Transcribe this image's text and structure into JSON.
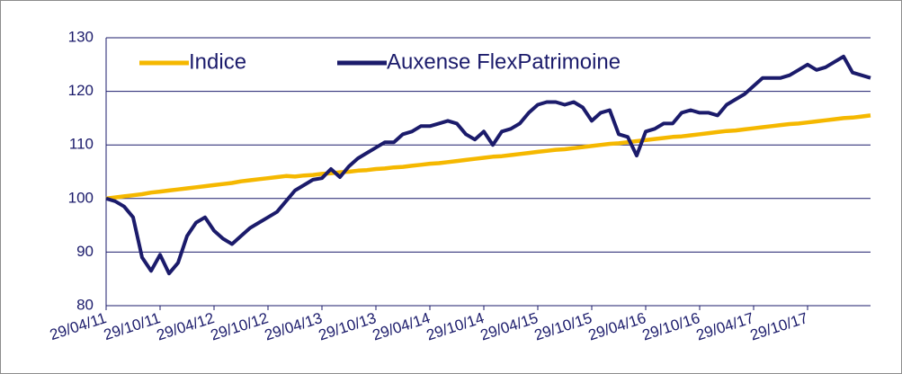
{
  "chart_data": {
    "type": "line",
    "x": [
      "29/04/11",
      "29/05/11",
      "29/06/11",
      "29/07/11",
      "29/08/11",
      "29/09/11",
      "29/10/11",
      "29/11/11",
      "29/12/11",
      "29/01/12",
      "29/02/12",
      "29/03/12",
      "29/04/12",
      "29/05/12",
      "29/06/12",
      "29/07/12",
      "29/08/12",
      "29/09/12",
      "29/10/12",
      "29/11/12",
      "29/12/12",
      "29/01/13",
      "29/02/13",
      "29/03/13",
      "29/04/13",
      "29/05/13",
      "29/06/13",
      "29/07/13",
      "29/08/13",
      "29/09/13",
      "29/10/13",
      "29/11/13",
      "29/12/13",
      "29/01/14",
      "29/02/14",
      "29/03/14",
      "29/04/14",
      "29/05/14",
      "29/06/14",
      "29/07/14",
      "29/08/14",
      "29/09/14",
      "29/10/14",
      "29/11/14",
      "29/12/14",
      "29/01/15",
      "29/02/15",
      "29/03/15",
      "29/04/15",
      "29/05/15",
      "29/06/15",
      "29/07/15",
      "29/08/15",
      "29/09/15",
      "29/10/15",
      "29/11/15",
      "29/12/15",
      "29/01/16",
      "29/02/16",
      "29/03/16",
      "29/04/16",
      "29/05/16",
      "29/06/16",
      "29/07/16",
      "29/08/16",
      "29/09/16",
      "29/10/16",
      "29/11/16",
      "29/12/16",
      "29/01/17",
      "29/02/17",
      "29/03/17",
      "29/04/17",
      "29/05/17",
      "29/06/17",
      "29/07/17",
      "29/08/17",
      "29/09/17",
      "29/10/17",
      "29/11/17",
      "29/12/17",
      "29/01/18",
      "29/02/18",
      "29/03/18",
      "29/04/18",
      "29/05/18"
    ],
    "series": [
      {
        "name": "Indice",
        "color": "#f5b800",
        "values": [
          100.0,
          100.2,
          100.4,
          100.6,
          100.8,
          101.1,
          101.3,
          101.5,
          101.7,
          101.9,
          102.1,
          102.3,
          102.5,
          102.7,
          102.9,
          103.2,
          103.4,
          103.6,
          103.8,
          104.0,
          104.2,
          104.1,
          104.3,
          104.4,
          104.6,
          104.7,
          104.9,
          105.0,
          105.2,
          105.3,
          105.5,
          105.6,
          105.8,
          105.9,
          106.1,
          106.3,
          106.5,
          106.6,
          106.8,
          107.0,
          107.2,
          107.4,
          107.6,
          107.8,
          107.9,
          108.1,
          108.3,
          108.5,
          108.7,
          108.9,
          109.1,
          109.2,
          109.4,
          109.6,
          109.8,
          110.0,
          110.2,
          110.3,
          110.5,
          110.7,
          110.9,
          111.1,
          111.3,
          111.5,
          111.6,
          111.8,
          112.0,
          112.2,
          112.4,
          112.6,
          112.7,
          112.9,
          113.1,
          113.3,
          113.5,
          113.7,
          113.9,
          114.0,
          114.2,
          114.4,
          114.6,
          114.8,
          115.0,
          115.1,
          115.3,
          115.5
        ]
      },
      {
        "name": "Auxense FlexPatrimoine",
        "color": "#1b1b6b",
        "values": [
          100,
          99.5,
          98.5,
          96.5,
          89,
          86.5,
          89.5,
          86,
          88,
          93,
          95.5,
          96.5,
          94,
          92.5,
          91.5,
          93,
          94.5,
          95.5,
          96.5,
          97.5,
          99.5,
          101.5,
          102.5,
          103.5,
          103.8,
          105.5,
          104,
          106,
          107.5,
          108.5,
          109.5,
          110.5,
          110.5,
          112,
          112.5,
          113.5,
          113.5,
          114,
          114.5,
          114,
          112,
          111,
          112.5,
          110,
          112.5,
          113,
          114,
          116,
          117.5,
          118,
          118,
          117.5,
          118,
          117,
          114.5,
          116,
          116.5,
          112,
          111.5,
          108,
          112.5,
          113,
          114,
          114,
          116,
          116.5,
          116,
          116,
          115.5,
          117.5,
          118.5,
          119.5,
          121,
          122.5,
          122.5,
          122.5,
          123,
          124,
          125,
          124,
          124.5,
          125.5,
          126.5,
          123.5,
          123,
          122.5
        ]
      }
    ],
    "xlim": [
      "29/04/11",
      "29/05/18"
    ],
    "xticks": [
      "29/04/11",
      "29/10/11",
      "29/04/12",
      "29/10/12",
      "29/04/13",
      "29/10/13",
      "29/04/14",
      "29/10/14",
      "29/04/15",
      "29/10/15",
      "29/04/16",
      "29/10/16",
      "29/04/17",
      "29/10/17"
    ],
    "ylim": [
      80,
      130
    ],
    "yticks": [
      80,
      90,
      100,
      110,
      120,
      130
    ],
    "grid": true,
    "legend": "top-left"
  }
}
